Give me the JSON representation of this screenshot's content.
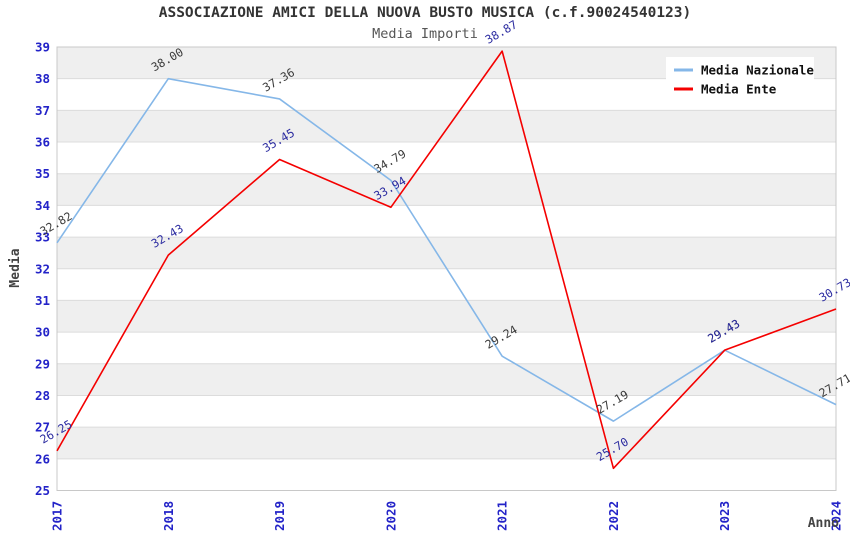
{
  "title": "ASSOCIAZIONE AMICI DELLA NUOVA BUSTO MUSICA (c.f.90024540123)",
  "subtitle": "Media Importi",
  "axis": {
    "y_label": "Media",
    "x_label": "Anno",
    "y_ticks": [
      25,
      26,
      27,
      28,
      29,
      30,
      31,
      32,
      33,
      34,
      35,
      36,
      37,
      38,
      39
    ],
    "x_ticks": [
      "2017",
      "2018",
      "2019",
      "2020",
      "2021",
      "2022",
      "2023",
      "2024"
    ]
  },
  "legend": {
    "position": "top-right",
    "items": [
      {
        "label": "Media Nazionale",
        "color": "#85b7e8"
      },
      {
        "label": "Media Ente",
        "color": "#f40000"
      }
    ]
  },
  "colors": {
    "tick_label": "#2323c8",
    "band": "#efefef",
    "grid": "#dcdcdc",
    "border": "#c8c8c8",
    "axis_label": "#444444",
    "legend_text": "#111111",
    "legend_bg": "#ffffff"
  },
  "chart_data": {
    "type": "line",
    "x": [
      "2017",
      "2018",
      "2019",
      "2020",
      "2021",
      "2022",
      "2023",
      "2024"
    ],
    "series": [
      {
        "name": "Media Nazionale",
        "color": "#85b7e8",
        "label_color": "#3a3a3a",
        "values": [
          32.82,
          38.0,
          37.36,
          34.79,
          29.24,
          27.19,
          29.43,
          27.71
        ],
        "labels": [
          "32.82",
          "38.00",
          "37.36",
          "34.79",
          "29.24",
          "27.19",
          "29.43",
          "27.71"
        ]
      },
      {
        "name": "Media Ente",
        "color": "#f40000",
        "label_color": "#2b2ba0",
        "values": [
          26.25,
          32.43,
          35.45,
          33.94,
          38.87,
          25.7,
          29.43,
          30.73
        ],
        "labels": [
          "26.25",
          "32.43",
          "35.45",
          "33.94",
          "38.87",
          "25.70",
          "29.43",
          "30.73"
        ]
      }
    ],
    "ylim": [
      25,
      39
    ],
    "xlabel": "Anno",
    "ylabel": "Media",
    "grid": "horizontal lines with alternating shaded bands",
    "legend_position": "top-right",
    "point_labels_rotation_deg": -30
  }
}
